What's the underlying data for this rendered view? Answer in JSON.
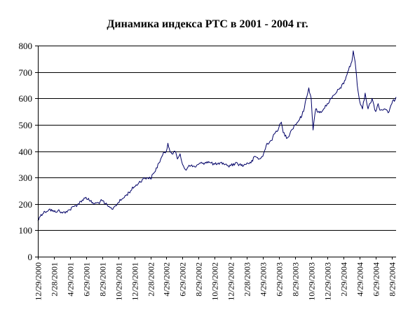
{
  "colors": {
    "line": "#000066",
    "grid": "#000000",
    "axis": "#000000",
    "background": "#ffffff"
  },
  "chart_data": {
    "type": "line",
    "title": "Динамика индекса РТС в 2001 - 2004 гг.",
    "xlabel": "",
    "ylabel": "",
    "ylim": [
      0,
      800
    ],
    "y_ticks": [
      0,
      100,
      200,
      300,
      400,
      500,
      600,
      700,
      800
    ],
    "y_tick_labels": [
      "0",
      "100",
      "200",
      "300",
      "400",
      "500",
      "600",
      "700",
      "800"
    ],
    "x_tick_labels": [
      "12/29/2000",
      "2/28/2001",
      "4/29/2001",
      "6/29/2001",
      "8/29/2001",
      "10/29/2001",
      "12/29/2001",
      "2/28/2002",
      "4/29/2002",
      "6/29/2002",
      "8/29/2002",
      "10/29/2002",
      "12/29/2002",
      "2/28/2003",
      "4/29/2003",
      "6/29/2003",
      "8/29/2003",
      "10/29/2003",
      "12/29/2003",
      "2/29/2004",
      "4/29/2004",
      "6/29/2004",
      "8/29/2004"
    ],
    "xlim": [
      "2000-12-29",
      "2004-09-14"
    ],
    "grid": {
      "horizontal": true,
      "vertical": false
    },
    "legend": "none",
    "series": [
      {
        "x": [
          "2000-12-29",
          "2001-01-10",
          "2001-01-25",
          "2001-02-10",
          "2001-02-28",
          "2001-03-15",
          "2001-04-01",
          "2001-04-15",
          "2001-04-29",
          "2001-05-15",
          "2001-05-31",
          "2001-06-15",
          "2001-06-29",
          "2001-07-15",
          "2001-07-31",
          "2001-08-15",
          "2001-08-29",
          "2001-09-10",
          "2001-09-21",
          "2001-10-05",
          "2001-10-15",
          "2001-10-29",
          "2001-11-15",
          "2001-11-30",
          "2001-12-15",
          "2001-12-29",
          "2002-01-15",
          "2002-01-31",
          "2002-02-15",
          "2002-02-28",
          "2002-03-15",
          "2002-04-01",
          "2002-04-15",
          "2002-04-29",
          "2002-05-05",
          "2002-05-10",
          "2002-05-20",
          "2002-05-31",
          "2002-06-10",
          "2002-06-20",
          "2002-06-29",
          "2002-07-10",
          "2002-07-20",
          "2002-07-31",
          "2002-08-15",
          "2002-08-29",
          "2002-09-15",
          "2002-09-30",
          "2002-10-15",
          "2002-10-29",
          "2002-11-15",
          "2002-11-30",
          "2002-12-15",
          "2002-12-29",
          "2003-01-15",
          "2003-01-31",
          "2003-02-15",
          "2003-02-28",
          "2003-03-15",
          "2003-03-31",
          "2003-04-15",
          "2003-04-29",
          "2003-05-15",
          "2003-05-31",
          "2003-06-15",
          "2003-06-29",
          "2003-07-08",
          "2003-07-15",
          "2003-07-31",
          "2003-08-15",
          "2003-08-29",
          "2003-09-15",
          "2003-09-30",
          "2003-10-10",
          "2003-10-20",
          "2003-10-29",
          "2003-11-05",
          "2003-11-15",
          "2003-11-30",
          "2003-12-15",
          "2003-12-29",
          "2004-01-15",
          "2004-01-31",
          "2004-02-15",
          "2004-02-29",
          "2004-03-15",
          "2004-03-31",
          "2004-04-05",
          "2004-04-12",
          "2004-04-20",
          "2004-04-29",
          "2004-05-10",
          "2004-05-20",
          "2004-05-31",
          "2004-06-15",
          "2004-06-29",
          "2004-07-08",
          "2004-07-15",
          "2004-07-31",
          "2004-08-15",
          "2004-08-29",
          "2004-09-14"
        ],
        "values": [
          135,
          160,
          170,
          180,
          170,
          175,
          165,
          172,
          178,
          190,
          200,
          215,
          225,
          210,
          200,
          205,
          212,
          200,
          190,
          180,
          190,
          205,
          220,
          235,
          250,
          265,
          280,
          295,
          300,
          295,
          320,
          355,
          385,
          400,
          430,
          410,
          390,
          400,
          370,
          390,
          350,
          330,
          340,
          345,
          340,
          350,
          355,
          360,
          355,
          350,
          350,
          355,
          345,
          345,
          355,
          350,
          345,
          355,
          355,
          380,
          370,
          380,
          430,
          440,
          470,
          490,
          510,
          470,
          450,
          480,
          500,
          520,
          550,
          600,
          640,
          600,
          480,
          560,
          545,
          560,
          580,
          600,
          620,
          640,
          655,
          700,
          740,
          780,
          740,
          650,
          590,
          560,
          620,
          560,
          600,
          550,
          580,
          555,
          560,
          545,
          580,
          605
        ]
      }
    ]
  }
}
